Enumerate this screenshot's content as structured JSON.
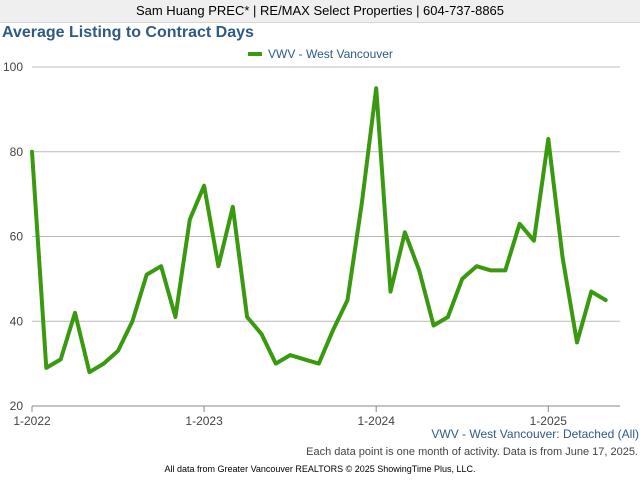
{
  "header": {
    "agent_line": "Sam Huang PREC* | RE/MAX Select Properties | 604-737-8865"
  },
  "colors": {
    "title": "#2e5a88",
    "series": "#3a9a0f",
    "grid": "#bbbbbb",
    "axis": "#888888"
  },
  "chart_data": {
    "type": "line",
    "title": "Average Listing to Contract Days",
    "subtitle": "VWV - West Vancouver: Detached (All)",
    "xlabel": "",
    "ylabel": "",
    "ylim": [
      20,
      100
    ],
    "yticks": [
      20,
      40,
      60,
      80,
      100
    ],
    "x_range": [
      2022,
      2025.4167
    ],
    "x_ticks": [
      {
        "value": 2022,
        "label": "1-2022"
      },
      {
        "value": 2023,
        "label": "1-2023"
      },
      {
        "value": 2024,
        "label": "1-2024"
      },
      {
        "value": 2025,
        "label": "1-2025"
      }
    ],
    "grid": true,
    "legend_position": "top-center",
    "series": [
      {
        "name": "VWV - West Vancouver",
        "x": [
          "1-2022",
          "2-2022",
          "3-2022",
          "4-2022",
          "5-2022",
          "6-2022",
          "7-2022",
          "8-2022",
          "9-2022",
          "10-2022",
          "11-2022",
          "12-2022",
          "1-2023",
          "2-2023",
          "3-2023",
          "4-2023",
          "5-2023",
          "6-2023",
          "7-2023",
          "8-2023",
          "9-2023",
          "10-2023",
          "11-2023",
          "12-2023",
          "1-2024",
          "2-2024",
          "3-2024",
          "4-2024",
          "5-2024",
          "6-2024",
          "7-2024",
          "8-2024",
          "9-2024",
          "10-2024",
          "11-2024",
          "12-2024",
          "1-2025",
          "2-2025",
          "3-2025",
          "4-2025",
          "5-2025"
        ],
        "values": [
          80,
          29,
          31,
          42,
          28,
          30,
          33,
          40,
          51,
          53,
          41,
          64,
          72,
          53,
          67,
          41,
          37,
          30,
          32,
          31,
          30,
          38,
          45,
          68,
          95,
          47,
          61,
          52,
          39,
          41,
          50,
          53,
          52,
          52,
          63,
          59,
          83,
          55,
          35,
          47,
          45
        ]
      }
    ],
    "note": "Each data point is one month of activity. Data is from June 17, 2025."
  },
  "footer": {
    "source": "All data from Greater Vancouver REALTORS © 2025 ShowingTime Plus, LLC."
  }
}
